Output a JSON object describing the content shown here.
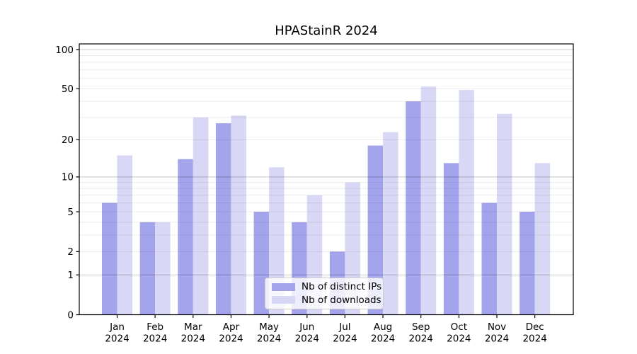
{
  "chart_data": {
    "type": "bar",
    "title": "HPAStainR 2024",
    "categories": [
      "Jan",
      "Feb",
      "Mar",
      "Apr",
      "May",
      "Jun",
      "Jul",
      "Aug",
      "Sep",
      "Oct",
      "Nov",
      "Dec"
    ],
    "year_label": "2024",
    "series": [
      {
        "name": "Nb of distinct IPs",
        "color": "#a4a4ec",
        "values": [
          6,
          4,
          14,
          27,
          5,
          4,
          2,
          18,
          40,
          13,
          6,
          5
        ]
      },
      {
        "name": "Nb of downloads",
        "color": "#d8d8f6",
        "values": [
          15,
          4,
          30,
          31,
          12,
          7,
          9,
          23,
          52,
          49,
          32,
          13
        ]
      }
    ],
    "xlabel": "",
    "ylabel": "",
    "y_axis": {
      "scale": "log1p",
      "ticks": [
        0,
        1,
        2,
        5,
        10,
        20,
        50,
        100
      ],
      "major_gridlines": [
        1,
        10,
        100
      ],
      "minor_gridlines": [
        2,
        3,
        4,
        5,
        6,
        7,
        8,
        9,
        20,
        30,
        40,
        50,
        60,
        70,
        80,
        90
      ],
      "ylim": [
        0,
        110
      ]
    },
    "grid": true,
    "legend_position": "lower center",
    "style": {
      "major_grid_color": "#c9c9c9",
      "minor_grid_color": "#ececec",
      "axis_color": "#000000",
      "background": "#ffffff"
    }
  }
}
